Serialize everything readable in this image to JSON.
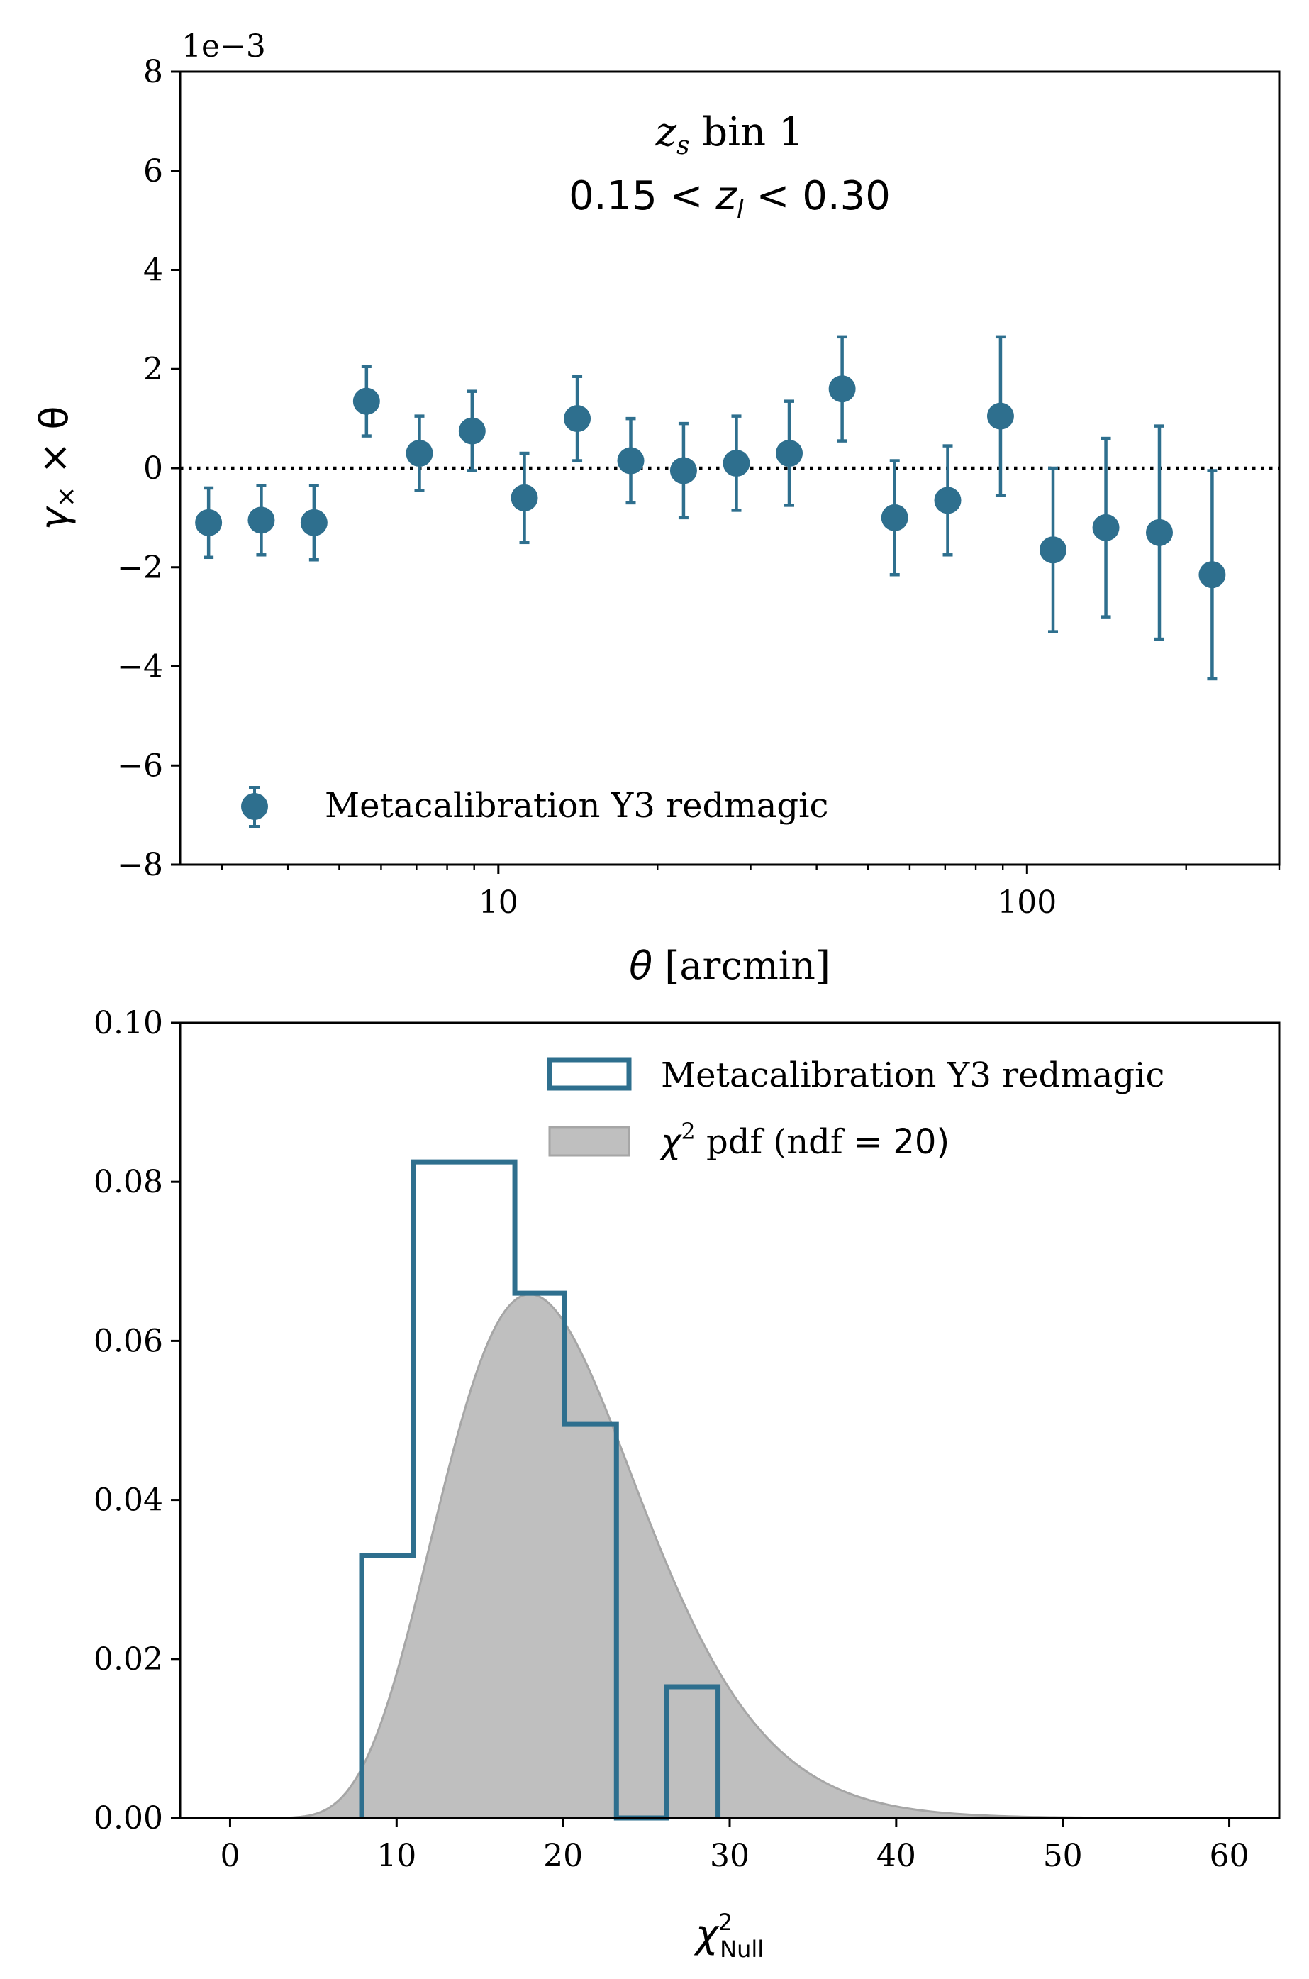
{
  "chart_data": [
    {
      "type": "scatter",
      "title_line1": "z_s bin 1",
      "title_line1_var": "z",
      "title_line1_sub": "s",
      "title_line1_text": " bin 1",
      "title_line2": "0.15 < z_l < 0.30",
      "title_line2_left": "0.15 < ",
      "title_line2_var": "z",
      "title_line2_sub": "l",
      "title_line2_right": " < 0.30",
      "offset_text": "1e−3",
      "xlabel_var": "θ",
      "xlabel_text": " [arcmin]",
      "ylabel": "γ× × θ",
      "ylabel_var": "γ",
      "ylabel_sub": "×",
      "ylabel_rest": " × θ",
      "xscale": "log",
      "xlim": [
        2.5,
        300
      ],
      "ylim": [
        -8,
        8
      ],
      "yscale_factor": 0.001,
      "xtick_labels": [
        {
          "value": 10,
          "label": "10"
        },
        {
          "value": 100,
          "label": "100"
        }
      ],
      "ytick_labels": [
        {
          "value": 8,
          "label": "8"
        },
        {
          "value": 6,
          "label": "6"
        },
        {
          "value": 4,
          "label": "4"
        },
        {
          "value": 2,
          "label": "2"
        },
        {
          "value": 0,
          "label": "0"
        },
        {
          "value": -2,
          "label": "−2"
        },
        {
          "value": -4,
          "label": "−4"
        },
        {
          "value": -6,
          "label": "−6"
        },
        {
          "value": -8,
          "label": "−8"
        }
      ],
      "reference_line": {
        "y": 0,
        "style": "dotted",
        "color": "#000000"
      },
      "legend": {
        "label": "Metacalibration Y3 redmagic",
        "placement": "lower-left"
      },
      "series": [
        {
          "name": "Metacalibration Y3 redmagic",
          "color": "#2e6f8e",
          "x": [
            2.83,
            3.56,
            4.48,
            5.63,
            7.09,
            8.92,
            11.2,
            14.1,
            17.8,
            22.4,
            28.2,
            35.5,
            44.7,
            56.2,
            70.8,
            89.1,
            112,
            141,
            178,
            224
          ],
          "y": [
            -1.1,
            -1.05,
            -1.1,
            1.35,
            0.3,
            0.75,
            -0.6,
            1.0,
            0.15,
            -0.05,
            0.1,
            0.3,
            1.6,
            -1.0,
            -0.65,
            1.05,
            -1.65,
            -1.2,
            -1.3,
            -2.15
          ],
          "yerr": [
            0.7,
            0.7,
            0.75,
            0.7,
            0.75,
            0.8,
            0.9,
            0.85,
            0.85,
            0.95,
            0.95,
            1.05,
            1.05,
            1.15,
            1.1,
            1.6,
            1.65,
            1.8,
            2.15,
            2.1
          ]
        }
      ]
    },
    {
      "type": "histogram",
      "xlabel_var": "χ",
      "xlabel_sup": "2",
      "xlabel_sub": "Null",
      "xlim": [
        -3,
        63
      ],
      "ylim": [
        0,
        0.1
      ],
      "xtick_labels": [
        {
          "value": 0,
          "label": "0"
        },
        {
          "value": 10,
          "label": "10"
        },
        {
          "value": 20,
          "label": "20"
        },
        {
          "value": 30,
          "label": "30"
        },
        {
          "value": 40,
          "label": "40"
        },
        {
          "value": 50,
          "label": "50"
        },
        {
          "value": 60,
          "label": "60"
        }
      ],
      "ytick_labels": [
        {
          "value": 0.0,
          "label": "0.00"
        },
        {
          "value": 0.02,
          "label": "0.02"
        },
        {
          "value": 0.04,
          "label": "0.04"
        },
        {
          "value": 0.06,
          "label": "0.06"
        },
        {
          "value": 0.08,
          "label": "0.08"
        },
        {
          "value": 0.1,
          "label": "0.10"
        }
      ],
      "histogram": {
        "name": "Metacalibration Y3 redmagic",
        "color": "#2e6f8e",
        "bin_edges": [
          7.9,
          11.0,
          17.1,
          20.1,
          23.2,
          26.2,
          29.3
        ],
        "values": [
          0.033,
          0.0825,
          0.066,
          0.0495,
          0.0,
          0.0165
        ]
      },
      "pdf": {
        "name": "χ² pdf (ndf = 20)",
        "legend_var": "χ",
        "legend_sup": "2",
        "legend_text": " pdf (ndf",
        "legend_eq": " = 20)",
        "ndf": 20,
        "fill_color": "#bfbfbf",
        "edge_color": "#a6a6a6",
        "x_range": [
          0,
          60
        ]
      },
      "legend_placement": "upper-right"
    }
  ]
}
